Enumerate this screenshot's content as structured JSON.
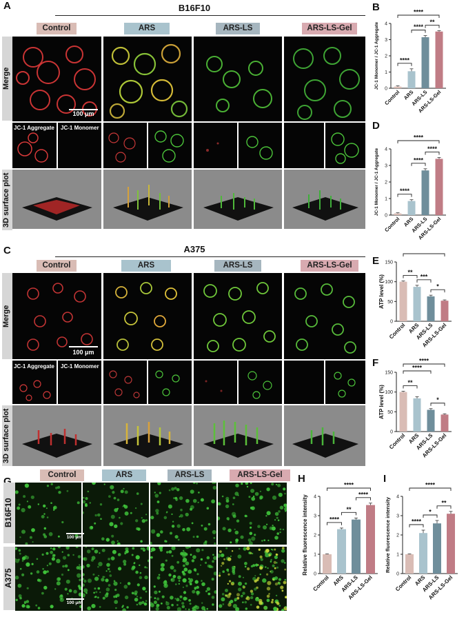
{
  "panels": {
    "A": {
      "letter": "A",
      "cell_line": "B16F10"
    },
    "B": {
      "letter": "B"
    },
    "C": {
      "letter": "C",
      "cell_line": "A375"
    },
    "D": {
      "letter": "D"
    },
    "E": {
      "letter": "E"
    },
    "F": {
      "letter": "F"
    },
    "G": {
      "letter": "G",
      "rows": [
        "B16F10",
        "A375"
      ]
    },
    "H": {
      "letter": "H"
    },
    "I": {
      "letter": "I"
    }
  },
  "groups": [
    "Control",
    "ARS",
    "ARS-LS",
    "ARS-LS-Gel"
  ],
  "row_labels": {
    "merge": "Merge",
    "surface": "3D surface plot"
  },
  "channels": {
    "aggregate": "JC-1 Aggregate",
    "monomer": "JC-1 Monomer"
  },
  "scale_bar": "100 μm",
  "colors": {
    "control": "#d9bcb5",
    "ars": "#a9c3cd",
    "ars_ls": "#6f8e9b",
    "ars_ls_gel": "#c07c85"
  },
  "chart_data": [
    {
      "id": "B",
      "type": "bar",
      "categories": [
        "Control",
        "ARS",
        "ARS-LS",
        "ARS-LS-Gel"
      ],
      "values": [
        0.1,
        1.05,
        3.15,
        3.5
      ],
      "errors": [
        0.05,
        0.15,
        0.1,
        0.05
      ],
      "ylabel": "JC-1 Monomer / JC-1 Aggregate",
      "ylim": [
        0,
        4
      ],
      "yticks": [
        0,
        1,
        2,
        3,
        4
      ],
      "sig": [
        {
          "from": 0,
          "to": 1,
          "label": "****"
        },
        {
          "from": 1,
          "to": 2,
          "label": "****"
        },
        {
          "from": 2,
          "to": 3,
          "label": "**"
        },
        {
          "from": 0,
          "to": 3,
          "label": "****"
        }
      ]
    },
    {
      "id": "D",
      "type": "bar",
      "categories": [
        "Control",
        "ARS",
        "ARS-LS",
        "ARS-LS-Gel"
      ],
      "values": [
        0.1,
        0.85,
        2.7,
        3.4
      ],
      "errors": [
        0.04,
        0.08,
        0.1,
        0.08
      ],
      "ylabel": "JC-1 Monomer / JC-1 Aggregate",
      "ylim": [
        0,
        4
      ],
      "yticks": [
        0,
        1,
        2,
        3,
        4
      ],
      "sig": [
        {
          "from": 0,
          "to": 1,
          "label": "****"
        },
        {
          "from": 1,
          "to": 2,
          "label": "****"
        },
        {
          "from": 2,
          "to": 3,
          "label": "****"
        },
        {
          "from": 0,
          "to": 3,
          "label": "****"
        }
      ]
    },
    {
      "id": "E",
      "type": "bar",
      "categories": [
        "Control",
        "ARS",
        "ARS-LS",
        "ARS-LS-Gel"
      ],
      "values": [
        100,
        87,
        63,
        52
      ],
      "errors": [
        2,
        4,
        3,
        2
      ],
      "ylabel": "ATP level (%)",
      "ylim": [
        0,
        150
      ],
      "yticks": [
        0,
        50,
        100,
        150
      ],
      "sig": [
        {
          "from": 0,
          "to": 1,
          "label": "**"
        },
        {
          "from": 1,
          "to": 2,
          "label": "***"
        },
        {
          "from": 2,
          "to": 3,
          "label": "*"
        },
        {
          "from": 0,
          "to": 3,
          "label": "****"
        }
      ]
    },
    {
      "id": "F",
      "type": "bar",
      "categories": [
        "Control",
        "ARS",
        "ARS-LS",
        "ARS-LS-Gel"
      ],
      "values": [
        100,
        84,
        55,
        43
      ],
      "errors": [
        2,
        4,
        3,
        2
      ],
      "ylabel": "ATP level (%)",
      "ylim": [
        0,
        150
      ],
      "yticks": [
        0,
        50,
        100,
        150
      ],
      "sig": [
        {
          "from": 0,
          "to": 1,
          "label": "**"
        },
        {
          "from": 0,
          "to": 2,
          "label": "****"
        },
        {
          "from": 2,
          "to": 3,
          "label": "*"
        },
        {
          "from": 0,
          "to": 3,
          "label": "****"
        }
      ]
    },
    {
      "id": "H",
      "type": "bar",
      "categories": [
        "Control",
        "ARS",
        "ARS-LS",
        "ARS-LS-Gel"
      ],
      "values": [
        1.0,
        2.3,
        2.8,
        3.55
      ],
      "errors": [
        0.02,
        0.06,
        0.08,
        0.1
      ],
      "ylabel": "Relative fluorescence intensity",
      "ylim": [
        0,
        4
      ],
      "yticks": [
        0,
        1,
        2,
        3,
        4
      ],
      "sig": [
        {
          "from": 0,
          "to": 1,
          "label": "****"
        },
        {
          "from": 1,
          "to": 2,
          "label": "**"
        },
        {
          "from": 2,
          "to": 3,
          "label": "****"
        },
        {
          "from": 0,
          "to": 3,
          "label": "****"
        }
      ]
    },
    {
      "id": "I",
      "type": "bar",
      "categories": [
        "Control",
        "ARS",
        "ARS-LS",
        "ARS-LS-Gel"
      ],
      "values": [
        1.0,
        2.1,
        2.6,
        3.1
      ],
      "errors": [
        0.02,
        0.15,
        0.15,
        0.12
      ],
      "ylabel": "Relative fluorescence intensity",
      "ylim": [
        0,
        4
      ],
      "yticks": [
        0,
        1,
        2,
        3,
        4
      ],
      "sig": [
        {
          "from": 0,
          "to": 1,
          "label": "****"
        },
        {
          "from": 1,
          "to": 2,
          "label": "*"
        },
        {
          "from": 2,
          "to": 3,
          "label": "**"
        },
        {
          "from": 0,
          "to": 3,
          "label": "****"
        }
      ]
    }
  ]
}
